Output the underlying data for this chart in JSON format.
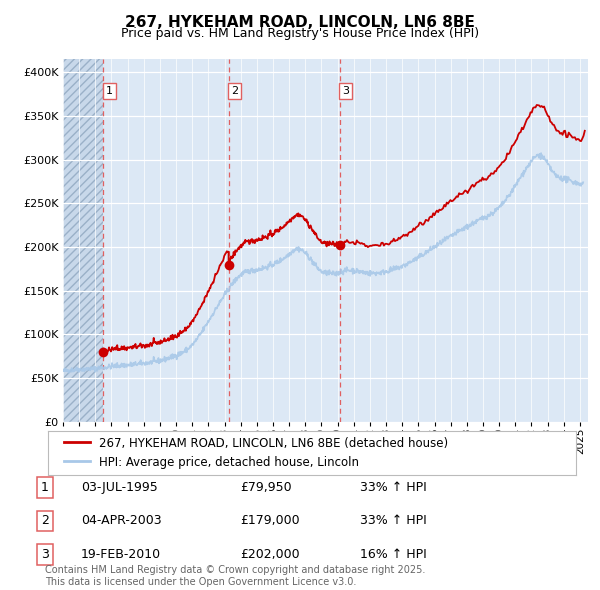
{
  "title_line1": "267, HYKEHAM ROAD, LINCOLN, LN6 8BE",
  "title_line2": "Price paid vs. HM Land Registry's House Price Index (HPI)",
  "ytick_values": [
    0,
    50000,
    100000,
    150000,
    200000,
    250000,
    300000,
    350000,
    400000
  ],
  "ylim": [
    0,
    415000
  ],
  "xlim_start": 1993.0,
  "xlim_end": 2025.5,
  "sale_color": "#cc0000",
  "hpi_color": "#a8c8e8",
  "legend_label_sale": "267, HYKEHAM ROAD, LINCOLN, LN6 8BE (detached house)",
  "legend_label_hpi": "HPI: Average price, detached house, Lincoln",
  "sales": [
    {
      "date": 1995.5,
      "price": 79950,
      "label": "1"
    },
    {
      "date": 2003.25,
      "price": 179000,
      "label": "2"
    },
    {
      "date": 2010.12,
      "price": 202000,
      "label": "3"
    }
  ],
  "table_rows": [
    [
      "1",
      "03-JUL-1995",
      "£79,950",
      "33% ↑ HPI"
    ],
    [
      "2",
      "04-APR-2003",
      "£179,000",
      "33% ↑ HPI"
    ],
    [
      "3",
      "19-FEB-2010",
      "£202,000",
      "16% ↑ HPI"
    ]
  ],
  "footer_text": "Contains HM Land Registry data © Crown copyright and database right 2025.\nThis data is licensed under the Open Government Licence v3.0.",
  "background_color": "#dce8f5",
  "fig_background": "#ffffff",
  "grid_color": "#ffffff",
  "dashed_vline_color": "#e06060",
  "hatch_fill_color": "#c8d8ea"
}
